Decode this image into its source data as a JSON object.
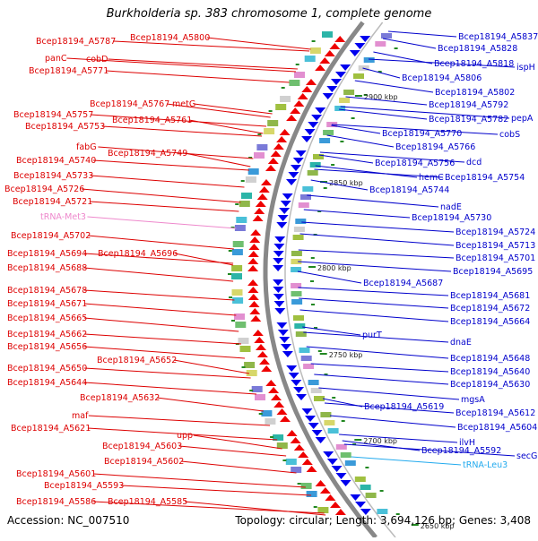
{
  "title": "Burkholderia sp. 383 chromosome 1, complete genome",
  "footer": {
    "accession": "Accession: NC_007510",
    "topology": "Topology: circular; Length: 3,694,126 bp; Genes: 3,408"
  },
  "colors": {
    "left_label": "#dd0000",
    "right_label": "#0000cc",
    "trna_left": "#ee88cc",
    "trna_right": "#22aaee",
    "backbone": "#888888",
    "tick": "#228822"
  },
  "kbp_marks": [
    "2900 kbp",
    "2850 kbp",
    "2800 kbp",
    "2750 kbp",
    "2700 kbp",
    "2650 kbp"
  ],
  "left_labels": [
    {
      "text": "Bcep18194_A5787",
      "kind": "gene"
    },
    {
      "text": "Bcep18194_A5800",
      "kind": "gene"
    },
    {
      "text": "panC",
      "kind": "gene"
    },
    {
      "text": "cobD",
      "kind": "gene"
    },
    {
      "text": "Bcep18194_A5771",
      "kind": "gene"
    },
    {
      "text": "Bcep18194_A5767",
      "kind": "gene"
    },
    {
      "text": "metG",
      "kind": "gene"
    },
    {
      "text": "Bcep18194_A5757",
      "kind": "gene"
    },
    {
      "text": "Bcep18194_A5761",
      "kind": "gene"
    },
    {
      "text": "Bcep18194_A5753",
      "kind": "gene"
    },
    {
      "text": "fabG",
      "kind": "gene"
    },
    {
      "text": "Bcep18194_A5749",
      "kind": "gene"
    },
    {
      "text": "Bcep18194_A5740",
      "kind": "gene"
    },
    {
      "text": "Bcep18194_A5733",
      "kind": "gene"
    },
    {
      "text": "Bcep18194_A5726",
      "kind": "gene"
    },
    {
      "text": "Bcep18194_A5721",
      "kind": "gene"
    },
    {
      "text": "tRNA-Met3",
      "kind": "trna"
    },
    {
      "text": "Bcep18194_A5702",
      "kind": "gene"
    },
    {
      "text": "Bcep18194_A5694",
      "kind": "gene"
    },
    {
      "text": "Bcep18194_A5696",
      "kind": "gene"
    },
    {
      "text": "Bcep18194_A5688",
      "kind": "gene"
    },
    {
      "text": "Bcep18194_A5678",
      "kind": "gene"
    },
    {
      "text": "Bcep18194_A5671",
      "kind": "gene"
    },
    {
      "text": "Bcep18194_A5665",
      "kind": "gene"
    },
    {
      "text": "Bcep18194_A5662",
      "kind": "gene"
    },
    {
      "text": "Bcep18194_A5656",
      "kind": "gene"
    },
    {
      "text": "Bcep18194_A5652",
      "kind": "gene"
    },
    {
      "text": "Bcep18194_A5650",
      "kind": "gene"
    },
    {
      "text": "Bcep18194_A5644",
      "kind": "gene"
    },
    {
      "text": "Bcep18194_A5632",
      "kind": "gene"
    },
    {
      "text": "maf",
      "kind": "gene"
    },
    {
      "text": "Bcep18194_A5621",
      "kind": "gene"
    },
    {
      "text": "upp",
      "kind": "gene"
    },
    {
      "text": "Bcep18194_A5603",
      "kind": "gene"
    },
    {
      "text": "Bcep18194_A5602",
      "kind": "gene"
    },
    {
      "text": "Bcep18194_A5601",
      "kind": "gene"
    },
    {
      "text": "Bcep18194_A5593",
      "kind": "gene"
    },
    {
      "text": "Bcep18194_A5586",
      "kind": "gene"
    },
    {
      "text": "Bcep18194_A5585",
      "kind": "gene"
    }
  ],
  "right_labels": [
    {
      "text": "Bcep18194_A5837",
      "kind": "gene"
    },
    {
      "text": "Bcep18194_A5828",
      "kind": "gene"
    },
    {
      "text": "Bcep18194_A5818",
      "kind": "gene"
    },
    {
      "text": "ispH",
      "kind": "gene"
    },
    {
      "text": "Bcep18194_A5806",
      "kind": "gene"
    },
    {
      "text": "Bcep18194_A5802",
      "kind": "gene"
    },
    {
      "text": "Bcep18194_A5792",
      "kind": "gene"
    },
    {
      "text": "Bcep18194_A5782",
      "kind": "gene"
    },
    {
      "text": "pepA",
      "kind": "gene"
    },
    {
      "text": "Bcep18194_A5770",
      "kind": "gene"
    },
    {
      "text": "cobS",
      "kind": "gene"
    },
    {
      "text": "Bcep18194_A5766",
      "kind": "gene"
    },
    {
      "text": "Bcep18194_A5756",
      "kind": "gene"
    },
    {
      "text": "dcd",
      "kind": "gene"
    },
    {
      "text": "hemC",
      "kind": "gene"
    },
    {
      "text": "Bcep18194_A5754",
      "kind": "gene"
    },
    {
      "text": "Bcep18194_A5744",
      "kind": "gene"
    },
    {
      "text": "nadE",
      "kind": "gene"
    },
    {
      "text": "Bcep18194_A5730",
      "kind": "gene"
    },
    {
      "text": "Bcep18194_A5724",
      "kind": "gene"
    },
    {
      "text": "Bcep18194_A5713",
      "kind": "gene"
    },
    {
      "text": "Bcep18194_A5701",
      "kind": "gene"
    },
    {
      "text": "Bcep18194_A5695",
      "kind": "gene"
    },
    {
      "text": "Bcep18194_A5687",
      "kind": "gene"
    },
    {
      "text": "Bcep18194_A5681",
      "kind": "gene"
    },
    {
      "text": "Bcep18194_A5672",
      "kind": "gene"
    },
    {
      "text": "Bcep18194_A5664",
      "kind": "gene"
    },
    {
      "text": "purT",
      "kind": "gene"
    },
    {
      "text": "dnaE",
      "kind": "gene"
    },
    {
      "text": "Bcep18194_A5648",
      "kind": "gene"
    },
    {
      "text": "Bcep18194_A5640",
      "kind": "gene"
    },
    {
      "text": "Bcep18194_A5630",
      "kind": "gene"
    },
    {
      "text": "mgsA",
      "kind": "gene"
    },
    {
      "text": "Bcep18194_A5619",
      "kind": "gene"
    },
    {
      "text": "Bcep18194_A5612",
      "kind": "gene"
    },
    {
      "text": "Bcep18194_A5604",
      "kind": "gene"
    },
    {
      "text": "ilvH",
      "kind": "gene"
    },
    {
      "text": "Bcep18194_A5592",
      "kind": "gene"
    },
    {
      "text": "secG",
      "kind": "gene"
    },
    {
      "text": "tRNA-Leu3",
      "kind": "trna"
    }
  ]
}
